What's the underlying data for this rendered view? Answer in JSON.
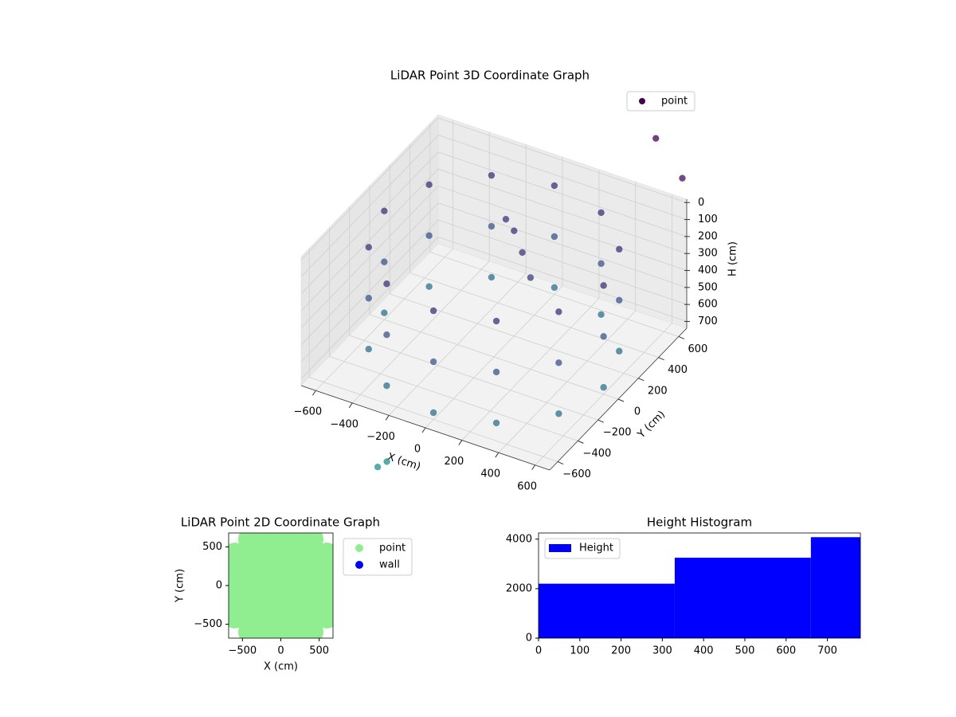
{
  "chart_data": [
    {
      "type": "scatter3d",
      "title": "LiDAR Point 3D Coordinate Graph",
      "x_label": "X (cm)",
      "y_label": "Y (cm)",
      "z_label": "H (cm)",
      "xlim": [
        -680,
        680
      ],
      "ylim": [
        -680,
        680
      ],
      "zlim": [
        740,
        -20
      ],
      "xticks": [
        {
          "value": -600,
          "label": "−600"
        },
        {
          "value": -400,
          "label": "−400"
        },
        {
          "value": -200,
          "label": "−200"
        },
        0,
        200,
        400,
        600
      ],
      "yticks": [
        {
          "value": -600,
          "label": "−600"
        },
        {
          "value": -400,
          "label": "−400"
        },
        {
          "value": -200,
          "label": "−200"
        },
        0,
        200,
        400,
        600
      ],
      "zticks": [
        0,
        100,
        200,
        300,
        400,
        500,
        600,
        700
      ],
      "colormap": [
        "#440154",
        "#3b528b",
        "#21918c"
      ],
      "legend": "upper right",
      "series": [
        {
          "name": "point",
          "color": "#440154",
          "x": [
            600,
            520,
            300,
            0,
            -300,
            -520,
            -600,
            -520,
            -300,
            0,
            300,
            520,
            600,
            520,
            300,
            0,
            -300,
            -520,
            -600,
            -520,
            -300,
            0,
            300,
            520,
            600,
            520,
            300,
            0,
            -300,
            -520,
            -600,
            -520,
            -300,
            0,
            300,
            520,
            -100,
            0,
            100,
            200,
            700,
            500,
            -250,
            -200
          ],
          "y": [
            0,
            300,
            520,
            600,
            520,
            300,
            0,
            -300,
            -520,
            -600,
            -520,
            -300,
            0,
            300,
            520,
            600,
            520,
            300,
            0,
            -300,
            -520,
            -600,
            -520,
            -300,
            0,
            300,
            520,
            600,
            520,
            300,
            0,
            -300,
            -520,
            -600,
            -520,
            -300,
            300,
            200,
            100,
            0,
            600,
            700,
            -700,
            -700
          ],
          "z": [
            100,
            100,
            100,
            100,
            100,
            100,
            100,
            100,
            100,
            100,
            100,
            100,
            400,
            400,
            400,
            400,
            400,
            400,
            400,
            400,
            400,
            400,
            400,
            400,
            700,
            700,
            700,
            700,
            700,
            700,
            700,
            700,
            700,
            700,
            700,
            700,
            150,
            120,
            150,
            200,
            -200,
            -300,
            1050,
            1000
          ]
        }
      ]
    },
    {
      "type": "scatter",
      "title": "LiDAR Point 2D Coordinate Graph",
      "x_label": "X (cm)",
      "y_label": "Y (cm)",
      "xlim": [
        -680,
        680
      ],
      "ylim": [
        -680,
        680
      ],
      "xticks": [
        {
          "value": -500,
          "label": "−500"
        },
        0,
        500
      ],
      "yticks": [
        {
          "value": -500,
          "label": "−500"
        },
        0,
        500
      ],
      "legend": "outside upper right",
      "series": [
        {
          "name": "point",
          "color": "#90ee90",
          "x": [
            -400,
            -200,
            0,
            200,
            400,
            -600,
            -400,
            -200,
            0,
            200,
            400,
            600,
            -600,
            -400,
            -200,
            0,
            200,
            400,
            600,
            -600,
            -400,
            -200,
            0,
            200,
            400,
            600,
            -600,
            -400,
            -200,
            0,
            200,
            400,
            600,
            -600,
            -400,
            -200,
            0,
            200,
            400,
            600,
            -400,
            -200,
            0,
            200,
            400
          ],
          "y": [
            -600,
            -600,
            -600,
            -600,
            -600,
            -400,
            -400,
            -400,
            -400,
            -400,
            -400,
            -400,
            -200,
            -200,
            -200,
            -200,
            -200,
            -200,
            -200,
            0,
            0,
            0,
            0,
            0,
            0,
            0,
            200,
            200,
            200,
            200,
            200,
            200,
            200,
            400,
            400,
            400,
            400,
            400,
            400,
            400,
            600,
            600,
            600,
            600,
            600
          ]
        },
        {
          "name": "wall",
          "color": "#0000ff",
          "x": [],
          "y": []
        }
      ]
    },
    {
      "type": "histogram",
      "title": "Height Histogram",
      "xlim": [
        0,
        780
      ],
      "ylim": [
        0,
        4250
      ],
      "xticks": [
        0,
        100,
        200,
        300,
        400,
        500,
        600,
        700
      ],
      "yticks": [
        0,
        2000,
        4000
      ],
      "legend": "upper left",
      "bins": [
        0,
        330,
        660,
        780
      ],
      "series": [
        {
          "name": "Height",
          "color": "#0000ff",
          "values": [
            2200,
            3250,
            4080
          ]
        }
      ]
    }
  ]
}
